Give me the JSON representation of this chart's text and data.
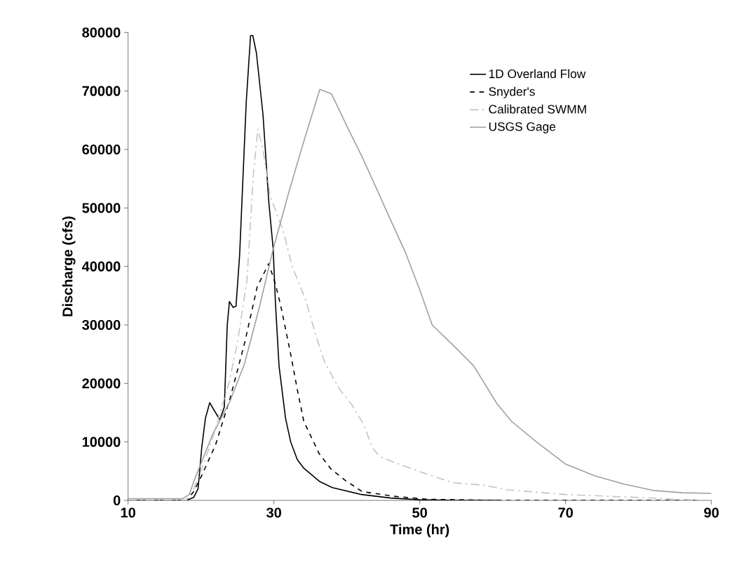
{
  "chart_data": {
    "type": "line",
    "xlabel": "Time (hr)",
    "ylabel": "Discharge (cfs)",
    "xlim": [
      10,
      90
    ],
    "ylim": [
      0,
      80000
    ],
    "xticks": [
      10,
      30,
      50,
      70,
      90
    ],
    "yticks": [
      0,
      10000,
      20000,
      30000,
      40000,
      50000,
      60000,
      70000,
      80000
    ],
    "grid": false,
    "legend": "top right",
    "series": [
      {
        "name": "1D Overland Flow",
        "color": "#000000",
        "line_style": "solid",
        "x": [
          10,
          18,
          19,
          19.6,
          20.1,
          20.6,
          21.2,
          22.0,
          22.6,
          23.2,
          23.6,
          23.9,
          24.4,
          24.8,
          25.3,
          26.2,
          26.8,
          27.1,
          27.6,
          28.5,
          29.3,
          29.9,
          30.2,
          30.7,
          31.6,
          32.3,
          33.2,
          34.1,
          36.3,
          38,
          42,
          46,
          50,
          55,
          61
        ],
        "values": [
          0,
          0,
          500,
          2000,
          9000,
          14000,
          16700,
          15000,
          13800,
          16000,
          30000,
          34000,
          33000,
          33200,
          42000,
          68000,
          79500,
          79500,
          76500,
          66000,
          51000,
          43000,
          34000,
          23000,
          14000,
          10000,
          7000,
          5500,
          3200,
          2200,
          1000,
          400,
          100,
          0,
          0
        ]
      },
      {
        "name": "Snyder's",
        "color": "#000000",
        "line_style": "dashed",
        "x": [
          10,
          18,
          19,
          20,
          22,
          24,
          26,
          27.7,
          29.3,
          30.2,
          30.9,
          32.3,
          33.2,
          34.1,
          36.2,
          37.8,
          39.7,
          42.1,
          46.5,
          51,
          60,
          90
        ],
        "values": [
          0,
          0,
          1500,
          4000,
          9500,
          17500,
          27000,
          36500,
          40500,
          37000,
          33500,
          25000,
          19000,
          13500,
          8000,
          5400,
          3500,
          1500,
          700,
          200,
          0,
          0
        ]
      },
      {
        "name": "Calibrated SWMM",
        "color": "#c4c4c4",
        "line_style": "dashdot",
        "x": [
          10,
          18,
          19,
          20,
          21.6,
          23.9,
          25,
          26.3,
          27.2,
          27.8,
          28.5,
          29.5,
          31.3,
          32.5,
          34.3,
          35.8,
          37,
          39,
          40.6,
          42.3,
          43.5,
          44.5,
          46.5,
          49.8,
          54.6,
          58.8,
          62,
          70,
          80,
          85,
          90
        ],
        "values": [
          0,
          0,
          2000,
          5000,
          10700,
          20400,
          27000,
          37600,
          56000,
          63500,
          60000,
          52000,
          46000,
          40000,
          34500,
          28000,
          23500,
          19000,
          16500,
          13000,
          9000,
          7500,
          6500,
          5000,
          3000,
          2600,
          1800,
          1000,
          500,
          200,
          0
        ]
      },
      {
        "name": "USGS Gage",
        "color": "#a0a0a0",
        "line_style": "solid",
        "x": [
          10,
          17.5,
          18.4,
          19,
          21.6,
          24,
          26,
          28,
          29.9,
          32,
          34,
          36.3,
          37.9,
          40,
          42,
          44,
          45.8,
          48,
          50,
          51.7,
          54.6,
          57.4,
          60.6,
          62.6,
          66,
          70,
          74,
          78,
          82,
          86,
          90
        ],
        "values": [
          300,
          300,
          1000,
          3200,
          11300,
          17000,
          23500,
          33000,
          43000,
          52500,
          61000,
          70300,
          69500,
          64000,
          59000,
          53500,
          48500,
          42500,
          36000,
          30000,
          26500,
          23000,
          16500,
          13500,
          10000,
          6200,
          4200,
          2800,
          1700,
          1300,
          1200
        ]
      }
    ]
  }
}
